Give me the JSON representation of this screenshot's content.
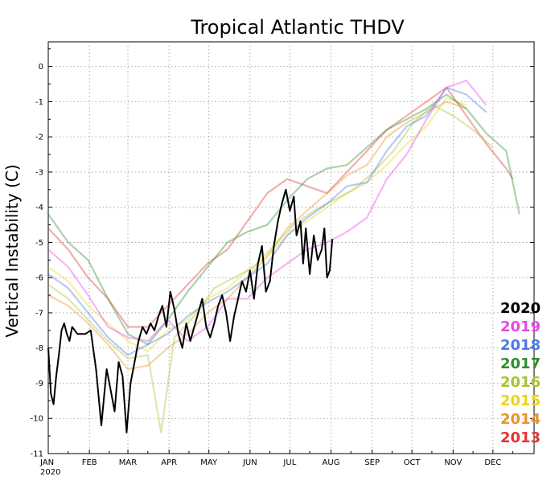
{
  "chart_data": {
    "type": "line",
    "title": "Tropical Atlantic THDV",
    "ylabel": "Vertical Instability (C)",
    "xlabel": "",
    "ylim": [
      -11,
      0.7
    ],
    "yticks": [
      0,
      -1,
      -2,
      -3,
      -4,
      -5,
      -6,
      -7,
      -8,
      -9,
      -10,
      -11
    ],
    "ytick_labels": [
      "0",
      "-1",
      "-2",
      "-3",
      "-4",
      "-5",
      "-6",
      "-7",
      "-8",
      "-9",
      "-10",
      "-11"
    ],
    "x_month_labels": [
      "JAN",
      "FEB",
      "MAR",
      "APR",
      "MAY",
      "JUN",
      "JUL",
      "AUG",
      "SEP",
      "OCT",
      "NOV",
      "DEC"
    ],
    "x_year_label": "2020",
    "grid": true,
    "legend_position": "bottom-right",
    "series": [
      {
        "name": "2020",
        "color": "#000000",
        "points": [
          [
            0,
            -8
          ],
          [
            2,
            -9.3
          ],
          [
            4,
            -9.6
          ],
          [
            6,
            -8.8
          ],
          [
            8,
            -8.2
          ],
          [
            10,
            -7.5
          ],
          [
            12,
            -7.3
          ],
          [
            14,
            -7.6
          ],
          [
            16,
            -7.8
          ],
          [
            18,
            -7.4
          ],
          [
            20,
            -7.5
          ],
          [
            22,
            -7.6
          ],
          [
            28,
            -7.6
          ],
          [
            32,
            -7.5
          ],
          [
            36,
            -8.6
          ],
          [
            40,
            -10.2
          ],
          [
            44,
            -8.6
          ],
          [
            47,
            -9.2
          ],
          [
            50,
            -9.8
          ],
          [
            53,
            -8.4
          ],
          [
            56,
            -8.8
          ],
          [
            59,
            -10.4
          ],
          [
            62,
            -9
          ],
          [
            65,
            -8.4
          ],
          [
            68,
            -7.8
          ],
          [
            71,
            -7.4
          ],
          [
            74,
            -7.6
          ],
          [
            77,
            -7.3
          ],
          [
            80,
            -7.5
          ],
          [
            83,
            -7.1
          ],
          [
            86,
            -6.8
          ],
          [
            89,
            -7.4
          ],
          [
            92,
            -6.4
          ],
          [
            95,
            -6.9
          ],
          [
            98,
            -7.6
          ],
          [
            101,
            -8
          ],
          [
            104,
            -7.3
          ],
          [
            107,
            -7.8
          ],
          [
            110,
            -7.4
          ],
          [
            113,
            -7
          ],
          [
            116,
            -6.6
          ],
          [
            119,
            -7.4
          ],
          [
            122,
            -7.7
          ],
          [
            125,
            -7.3
          ],
          [
            128,
            -6.8
          ],
          [
            131,
            -6.5
          ],
          [
            134,
            -7
          ],
          [
            137,
            -7.8
          ],
          [
            140,
            -7.1
          ],
          [
            143,
            -6.6
          ],
          [
            146,
            -6.1
          ],
          [
            149,
            -6.4
          ],
          [
            152,
            -5.8
          ],
          [
            155,
            -6.6
          ],
          [
            158,
            -5.6
          ],
          [
            161,
            -5.1
          ],
          [
            164,
            -6.4
          ],
          [
            167,
            -6.1
          ],
          [
            170,
            -5.1
          ],
          [
            173,
            -4.4
          ],
          [
            176,
            -3.9
          ],
          [
            179,
            -3.5
          ],
          [
            182,
            -4.1
          ],
          [
            185,
            -3.7
          ],
          [
            187,
            -4.8
          ],
          [
            190,
            -4.4
          ],
          [
            192,
            -5.6
          ],
          [
            194,
            -4.6
          ],
          [
            197,
            -5.9
          ],
          [
            200,
            -4.8
          ],
          [
            203,
            -5.5
          ],
          [
            206,
            -5.2
          ],
          [
            208,
            -4.6
          ],
          [
            210,
            -6
          ],
          [
            212,
            -5.8
          ],
          [
            214,
            -4.9
          ]
        ]
      },
      {
        "name": "2019",
        "color": "#e24be2",
        "points": [
          [
            0,
            -5.2
          ],
          [
            15,
            -5.7
          ],
          [
            30,
            -6.5
          ],
          [
            45,
            -7.4
          ],
          [
            60,
            -7.7
          ],
          [
            75,
            -7.8
          ],
          [
            90,
            -7.2
          ],
          [
            105,
            -7.8
          ],
          [
            120,
            -7.4
          ],
          [
            135,
            -6.6
          ],
          [
            150,
            -6.6
          ],
          [
            165,
            -6
          ],
          [
            180,
            -5.6
          ],
          [
            195,
            -5.2
          ],
          [
            210,
            -5
          ],
          [
            225,
            -4.7
          ],
          [
            240,
            -4.3
          ],
          [
            255,
            -3.2
          ],
          [
            270,
            -2.5
          ],
          [
            285,
            -1.5
          ],
          [
            300,
            -0.6
          ],
          [
            315,
            -0.4
          ],
          [
            330,
            -1.1
          ]
        ]
      },
      {
        "name": "2018",
        "color": "#4e7ae6",
        "points": [
          [
            0,
            -5.9
          ],
          [
            15,
            -6.3
          ],
          [
            30,
            -7
          ],
          [
            45,
            -7.7
          ],
          [
            60,
            -8.2
          ],
          [
            75,
            -7.9
          ],
          [
            90,
            -7.6
          ],
          [
            105,
            -7.1
          ],
          [
            120,
            -6.7
          ],
          [
            135,
            -6.4
          ],
          [
            150,
            -6
          ],
          [
            165,
            -5.6
          ],
          [
            180,
            -4.8
          ],
          [
            195,
            -4.3
          ],
          [
            210,
            -3.9
          ],
          [
            225,
            -3.4
          ],
          [
            240,
            -3.3
          ],
          [
            255,
            -2.4
          ],
          [
            270,
            -1.7
          ],
          [
            285,
            -1.4
          ],
          [
            300,
            -0.6
          ],
          [
            315,
            -0.8
          ],
          [
            330,
            -1.3
          ]
        ]
      },
      {
        "name": "2017",
        "color": "#2d8f2d",
        "points": [
          [
            0,
            -4.2
          ],
          [
            15,
            -5
          ],
          [
            30,
            -5.5
          ],
          [
            45,
            -6.6
          ],
          [
            60,
            -7.6
          ],
          [
            75,
            -7.9
          ],
          [
            90,
            -7.2
          ],
          [
            105,
            -6.4
          ],
          [
            120,
            -5.7
          ],
          [
            135,
            -5
          ],
          [
            150,
            -4.7
          ],
          [
            165,
            -4.5
          ],
          [
            180,
            -3.8
          ],
          [
            195,
            -3.2
          ],
          [
            210,
            -2.9
          ],
          [
            225,
            -2.8
          ],
          [
            240,
            -2.3
          ],
          [
            255,
            -1.8
          ],
          [
            270,
            -1.5
          ],
          [
            285,
            -1.2
          ],
          [
            300,
            -0.8
          ],
          [
            315,
            -1.2
          ],
          [
            330,
            -1.9
          ],
          [
            345,
            -2.4
          ],
          [
            355,
            -4.2
          ]
        ]
      },
      {
        "name": "2016",
        "color": "#a8c23a",
        "points": [
          [
            0,
            -6.2
          ],
          [
            15,
            -6.6
          ],
          [
            30,
            -7.2
          ],
          [
            45,
            -7.8
          ],
          [
            60,
            -8.3
          ],
          [
            75,
            -8.2
          ],
          [
            85,
            -10.4
          ],
          [
            95,
            -7.7
          ],
          [
            110,
            -7.1
          ],
          [
            125,
            -6.3
          ],
          [
            140,
            -6
          ],
          [
            155,
            -5.7
          ],
          [
            170,
            -5.1
          ],
          [
            185,
            -4.5
          ],
          [
            200,
            -4.1
          ],
          [
            215,
            -3.8
          ],
          [
            230,
            -3.5
          ],
          [
            245,
            -3
          ],
          [
            260,
            -2.4
          ],
          [
            275,
            -1.6
          ],
          [
            290,
            -1.1
          ],
          [
            305,
            -1.4
          ],
          [
            320,
            -1.8
          ],
          [
            335,
            -2.3
          ]
        ]
      },
      {
        "name": "2015",
        "color": "#e8d61c",
        "points": [
          [
            0,
            -5.7
          ],
          [
            15,
            -6.1
          ],
          [
            30,
            -6.8
          ],
          [
            45,
            -7.3
          ],
          [
            60,
            -7.8
          ],
          [
            75,
            -8.1
          ],
          [
            90,
            -7.5
          ],
          [
            105,
            -7.2
          ],
          [
            120,
            -6.6
          ],
          [
            135,
            -6.3
          ],
          [
            150,
            -5.8
          ],
          [
            165,
            -5.4
          ],
          [
            180,
            -4.8
          ],
          [
            195,
            -4.4
          ],
          [
            210,
            -4
          ],
          [
            225,
            -3.6
          ],
          [
            240,
            -3.3
          ],
          [
            255,
            -2.8
          ],
          [
            270,
            -2.2
          ],
          [
            285,
            -1.7
          ],
          [
            300,
            -0.9
          ],
          [
            315,
            -1.1
          ]
        ]
      },
      {
        "name": "2014",
        "color": "#e8942e",
        "points": [
          [
            0,
            -6.5
          ],
          [
            15,
            -6.8
          ],
          [
            30,
            -7.3
          ],
          [
            45,
            -7.9
          ],
          [
            60,
            -8.6
          ],
          [
            75,
            -8.5
          ],
          [
            90,
            -8
          ],
          [
            105,
            -7.6
          ],
          [
            120,
            -7
          ],
          [
            135,
            -6.6
          ],
          [
            150,
            -6
          ],
          [
            165,
            -5.4
          ],
          [
            180,
            -4.6
          ],
          [
            195,
            -4.1
          ],
          [
            210,
            -3.6
          ],
          [
            225,
            -3.1
          ],
          [
            240,
            -2.8
          ],
          [
            255,
            -2
          ],
          [
            270,
            -1.6
          ],
          [
            285,
            -1.3
          ],
          [
            300,
            -1
          ],
          [
            315,
            -1.2
          ]
        ]
      },
      {
        "name": "2013",
        "color": "#e23535",
        "points": [
          [
            0,
            -4.6
          ],
          [
            15,
            -5.2
          ],
          [
            30,
            -6
          ],
          [
            45,
            -6.6
          ],
          [
            60,
            -7.4
          ],
          [
            75,
            -7.4
          ],
          [
            90,
            -6.8
          ],
          [
            105,
            -6.2
          ],
          [
            120,
            -5.6
          ],
          [
            135,
            -5.2
          ],
          [
            150,
            -4.4
          ],
          [
            165,
            -3.6
          ],
          [
            180,
            -3.2
          ],
          [
            195,
            -3.4
          ],
          [
            210,
            -3.6
          ],
          [
            225,
            -3
          ],
          [
            240,
            -2.4
          ],
          [
            255,
            -1.8
          ],
          [
            270,
            -1.4
          ],
          [
            285,
            -1
          ],
          [
            300,
            -0.6
          ],
          [
            315,
            -1.4
          ],
          [
            330,
            -2.2
          ],
          [
            345,
            -2.9
          ],
          [
            350,
            -3.2
          ]
        ]
      }
    ]
  }
}
